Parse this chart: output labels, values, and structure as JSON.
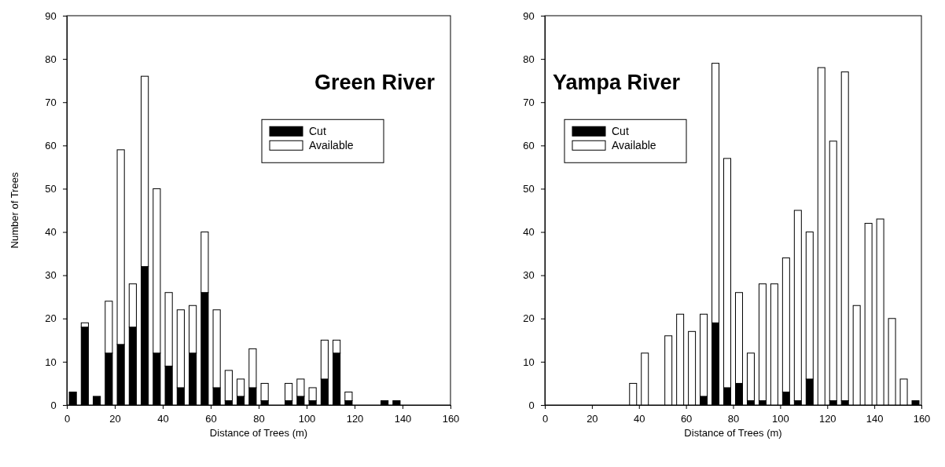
{
  "chart_data": [
    {
      "type": "bar",
      "title": "Green River",
      "xlabel": "Distance of Trees (m)",
      "ylabel": "Number of Trees",
      "stacked": true,
      "x": [
        2.5,
        7.5,
        12.5,
        17.5,
        22.5,
        27.5,
        32.5,
        37.5,
        42.5,
        47.5,
        52.5,
        57.5,
        62.5,
        67.5,
        72.5,
        77.5,
        82.5,
        92.5,
        97.5,
        102.5,
        107.5,
        112.5,
        117.5,
        132.5,
        137.5
      ],
      "series": [
        {
          "name": "Cut",
          "color": "#000000",
          "values": [
            3,
            18,
            2,
            12,
            14,
            18,
            32,
            12,
            9,
            4,
            12,
            26,
            4,
            1,
            2,
            4,
            1,
            1,
            2,
            1,
            6,
            12,
            1,
            1,
            1
          ]
        },
        {
          "name": "Available",
          "color": "#ffffff",
          "values": [
            0,
            1,
            0,
            12,
            45,
            10,
            44,
            38,
            17,
            18,
            11,
            14,
            18,
            7,
            4,
            9,
            4,
            4,
            4,
            3,
            9,
            3,
            2,
            0,
            0
          ]
        }
      ],
      "xlim": [
        0,
        160
      ],
      "xticks": [
        0,
        20,
        40,
        60,
        80,
        100,
        120,
        140,
        160
      ],
      "ylim": [
        0,
        90
      ],
      "yticks": [
        0,
        10,
        20,
        30,
        40,
        50,
        60,
        70,
        80,
        90
      ],
      "legend": "top right"
    },
    {
      "type": "bar",
      "title": "Yampa River",
      "xlabel": "Distance of Trees (m)",
      "stacked": true,
      "x": [
        37.5,
        42.5,
        52.5,
        57.5,
        62.5,
        67.5,
        72.5,
        77.5,
        82.5,
        87.5,
        92.5,
        97.5,
        102.5,
        107.5,
        112.5,
        117.5,
        122.5,
        127.5,
        132.5,
        137.5,
        142.5,
        147.5,
        152.5,
        157.5
      ],
      "series": [
        {
          "name": "Cut",
          "color": "#000000",
          "values": [
            0,
            0,
            0,
            0,
            0,
            2,
            19,
            4,
            5,
            1,
            1,
            0,
            3,
            1,
            6,
            0,
            1,
            1,
            0,
            0,
            0,
            0,
            0,
            1
          ]
        },
        {
          "name": "Available",
          "color": "#ffffff",
          "values": [
            5,
            12,
            16,
            21,
            17,
            19,
            60,
            53,
            21,
            11,
            27,
            28,
            31,
            44,
            34,
            78,
            60,
            76,
            23,
            42,
            43,
            20,
            6,
            0
          ]
        }
      ],
      "xlim": [
        0,
        160
      ],
      "xticks": [
        0,
        20,
        40,
        60,
        80,
        100,
        120,
        140,
        160
      ],
      "ylim": [
        0,
        90
      ],
      "yticks": [
        0,
        10,
        20,
        30,
        40,
        50,
        60,
        70,
        80,
        90
      ],
      "legend": "top left"
    }
  ]
}
